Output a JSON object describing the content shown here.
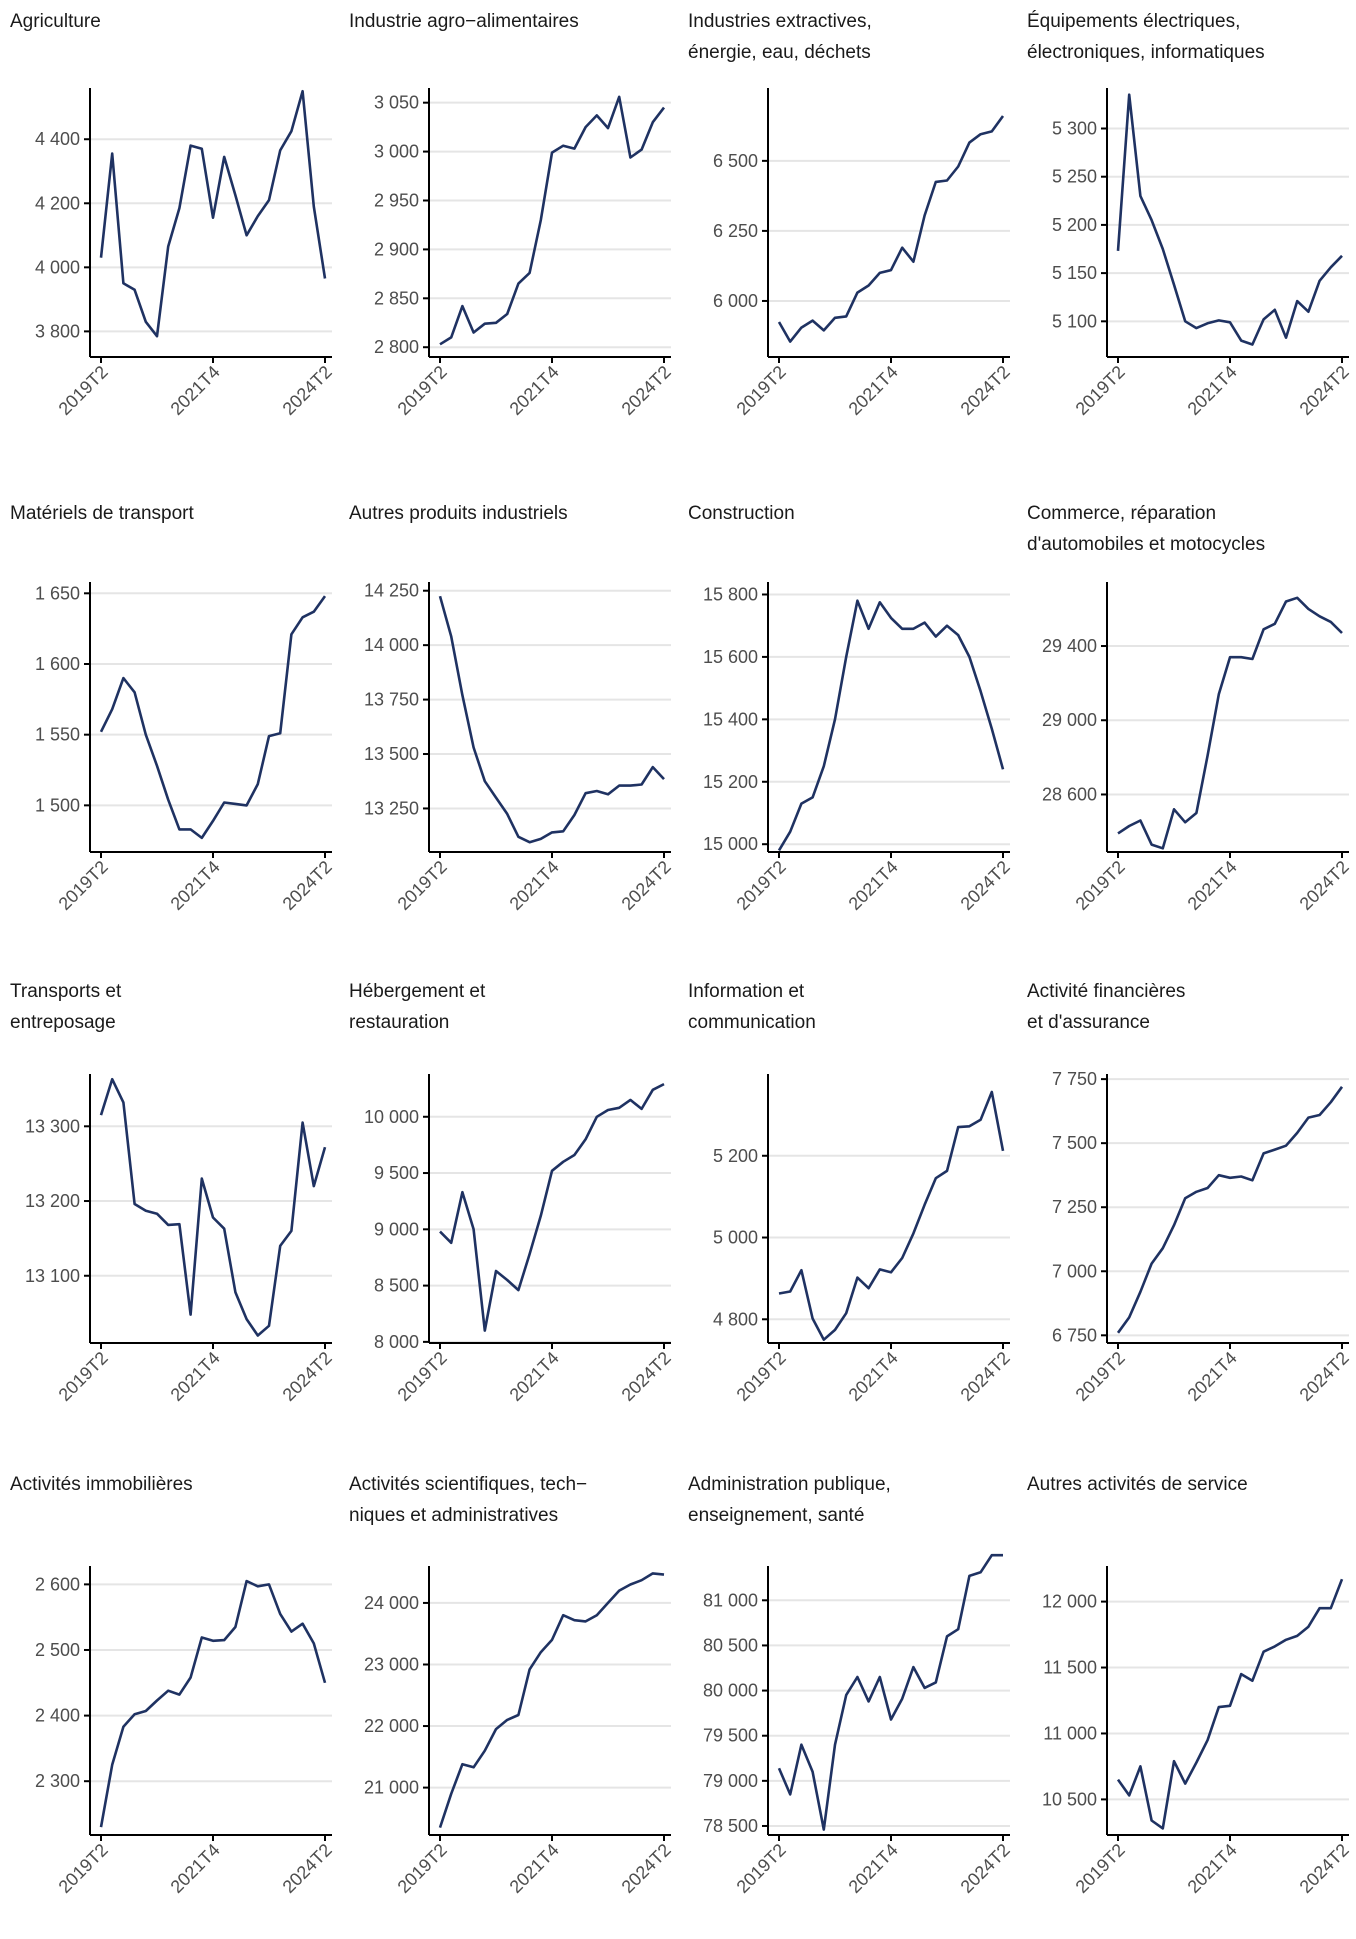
{
  "colors": {
    "line": "#1f3262",
    "grid": "#e5e5e5",
    "axis": "#000000",
    "text": "#1a1a1a",
    "tick_text": "#4d4d4d"
  },
  "chart_data": [
    {
      "type": "line",
      "title": "Agriculture",
      "x_ticks": [
        "2019T2",
        "2021T4",
        "2024T2"
      ],
      "x_tick_index": [
        0,
        10,
        20
      ],
      "y_ticks": [
        3800,
        4000,
        4200,
        4400
      ],
      "y_tick_labels": [
        "3 800",
        "4 000",
        "4 200",
        "4 400"
      ],
      "ylim": [
        3720,
        4560
      ],
      "grid": "horizontal",
      "series": [
        {
          "values": [
            4030,
            4355,
            3950,
            3930,
            3830,
            3785,
            4065,
            4185,
            4380,
            4370,
            4155,
            4345,
            4225,
            4100,
            4160,
            4210,
            4365,
            4425,
            4550,
            4190,
            3965
          ]
        }
      ]
    },
    {
      "type": "line",
      "title": "Industrie agro−alimentaires",
      "x_ticks": [
        "2019T2",
        "2021T4",
        "2024T2"
      ],
      "x_tick_index": [
        0,
        10,
        20
      ],
      "y_ticks": [
        2800,
        2850,
        2900,
        2950,
        3000,
        3050
      ],
      "y_tick_labels": [
        "2 800",
        "2 850",
        "2 900",
        "2 950",
        "3 000",
        "3 050"
      ],
      "ylim": [
        2790,
        3065
      ],
      "grid": "horizontal",
      "series": [
        {
          "values": [
            2803,
            2810,
            2842,
            2815,
            2824,
            2825,
            2834,
            2865,
            2876,
            2930,
            2999,
            3006,
            3003,
            3025,
            3037,
            3024,
            3056,
            2994,
            3002,
            3030,
            3045
          ]
        }
      ]
    },
    {
      "type": "line",
      "title": "Industries extractives,\nénergie, eau, déchets",
      "x_ticks": [
        "2019T2",
        "2021T4",
        "2024T2"
      ],
      "x_tick_index": [
        0,
        10,
        20
      ],
      "y_ticks": [
        6000,
        6250,
        6500
      ],
      "y_tick_labels": [
        "6 000",
        "6 250",
        "6 500"
      ],
      "ylim": [
        5800,
        6760
      ],
      "grid": "horizontal",
      "series": [
        {
          "values": [
            5925,
            5855,
            5905,
            5930,
            5895,
            5940,
            5945,
            6030,
            6055,
            6100,
            6110,
            6190,
            6140,
            6305,
            6425,
            6430,
            6480,
            6565,
            6595,
            6605,
            6660
          ]
        }
      ]
    },
    {
      "type": "line",
      "title": "Équipements électriques,\nélectroniques, informatiques",
      "x_ticks": [
        "2019T2",
        "2021T4",
        "2024T2"
      ],
      "x_tick_index": [
        0,
        10,
        20
      ],
      "y_ticks": [
        5100,
        5150,
        5200,
        5250,
        5300
      ],
      "y_tick_labels": [
        "5 100",
        "5 150",
        "5 200",
        "5 250",
        "5 300"
      ],
      "ylim": [
        5063,
        5342
      ],
      "grid": "horizontal",
      "series": [
        {
          "values": [
            5173,
            5335,
            5230,
            5205,
            5175,
            5138,
            5100,
            5093,
            5098,
            5101,
            5099,
            5080,
            5076,
            5102,
            5112,
            5083,
            5121,
            5110,
            5142,
            5156,
            5168
          ]
        }
      ]
    },
    {
      "type": "line",
      "title": "Matériels de transport",
      "x_ticks": [
        "2019T2",
        "2021T4",
        "2024T2"
      ],
      "x_tick_index": [
        0,
        10,
        20
      ],
      "y_ticks": [
        1500,
        1550,
        1600,
        1650
      ],
      "y_tick_labels": [
        "1 500",
        "1 550",
        "1 600",
        "1 650"
      ],
      "ylim": [
        1467,
        1658
      ],
      "grid": "horizontal",
      "series": [
        {
          "values": [
            1552,
            1568,
            1590,
            1580,
            1550,
            1528,
            1504,
            1483,
            1483,
            1477,
            1489,
            1502,
            1501,
            1500,
            1515,
            1549,
            1551,
            1621,
            1633,
            1637,
            1648
          ]
        }
      ]
    },
    {
      "type": "line",
      "title": "Autres produits industriels",
      "x_ticks": [
        "2019T2",
        "2021T4",
        "2024T2"
      ],
      "x_tick_index": [
        0,
        10,
        20
      ],
      "y_ticks": [
        13250,
        13500,
        13750,
        14000,
        14250
      ],
      "y_tick_labels": [
        "13 250",
        "13 500",
        "13 750",
        "14 000",
        "14 250"
      ],
      "ylim": [
        13050,
        14290
      ],
      "grid": "horizontal",
      "series": [
        {
          "values": [
            14225,
            14040,
            13770,
            13530,
            13375,
            13300,
            13225,
            13120,
            13095,
            13110,
            13140,
            13145,
            13220,
            13320,
            13330,
            13315,
            13355,
            13355,
            13360,
            13440,
            13385
          ]
        }
      ]
    },
    {
      "type": "line",
      "title": "Construction",
      "x_ticks": [
        "2019T2",
        "2021T4",
        "2024T2"
      ],
      "x_tick_index": [
        0,
        10,
        20
      ],
      "y_ticks": [
        15000,
        15200,
        15400,
        15600,
        15800
      ],
      "y_tick_labels": [
        "15 000",
        "15 200",
        "15 400",
        "15 600",
        "15 800"
      ],
      "ylim": [
        14975,
        15840
      ],
      "grid": "horizontal",
      "series": [
        {
          "values": [
            14980,
            15040,
            15130,
            15150,
            15250,
            15400,
            15600,
            15780,
            15690,
            15775,
            15725,
            15690,
            15690,
            15710,
            15665,
            15700,
            15670,
            15600,
            15490,
            15370,
            15240
          ]
        }
      ]
    },
    {
      "type": "line",
      "title": "Commerce, réparation\nd'automobiles et motocycles",
      "x_ticks": [
        "2019T2",
        "2021T4",
        "2024T2"
      ],
      "x_tick_index": [
        0,
        10,
        20
      ],
      "y_ticks": [
        28600,
        29000,
        29400
      ],
      "y_tick_labels": [
        "28 600",
        "29 000",
        "29 400"
      ],
      "ylim": [
        28290,
        29745
      ],
      "grid": "horizontal",
      "series": [
        {
          "values": [
            28390,
            28430,
            28460,
            28330,
            28310,
            28520,
            28450,
            28500,
            28810,
            29140,
            29340,
            29340,
            29330,
            29490,
            29520,
            29640,
            29660,
            29600,
            29560,
            29530,
            29470
          ]
        }
      ]
    },
    {
      "type": "line",
      "title": "Transports et\nentreposage",
      "x_ticks": [
        "2019T2",
        "2021T4",
        "2024T2"
      ],
      "x_tick_index": [
        0,
        10,
        20
      ],
      "y_ticks": [
        13100,
        13200,
        13300
      ],
      "y_tick_labels": [
        "13 100",
        "13 200",
        "13 300"
      ],
      "ylim": [
        13010,
        13370
      ],
      "grid": "horizontal",
      "series": [
        {
          "values": [
            13315,
            13363,
            13332,
            13196,
            13187,
            13183,
            13168,
            13169,
            13048,
            13230,
            13178,
            13163,
            13078,
            13042,
            13020,
            13033,
            13140,
            13160,
            13305,
            13220,
            13272
          ]
        }
      ]
    },
    {
      "type": "line",
      "title": "Hébergement et\nrestauration",
      "x_ticks": [
        "2019T2",
        "2021T4",
        "2024T2"
      ],
      "x_tick_index": [
        0,
        10,
        20
      ],
      "y_ticks": [
        8000,
        8500,
        9000,
        9500,
        10000
      ],
      "y_tick_labels": [
        "8 000",
        "8 500",
        "9 000",
        "9 500",
        "10 000"
      ],
      "ylim": [
        7990,
        10380
      ],
      "grid": "horizontal",
      "series": [
        {
          "values": [
            8980,
            8880,
            9330,
            9000,
            8100,
            8630,
            8550,
            8460,
            8780,
            9120,
            9520,
            9600,
            9660,
            9800,
            10000,
            10060,
            10080,
            10150,
            10070,
            10240,
            10290
          ]
        }
      ]
    },
    {
      "type": "line",
      "title": "Information et\ncommunication",
      "x_ticks": [
        "2019T2",
        "2021T4",
        "2024T2"
      ],
      "x_tick_index": [
        0,
        10,
        20
      ],
      "y_ticks": [
        4800,
        5000,
        5200
      ],
      "y_tick_labels": [
        "4 800",
        "5 000",
        "5 200"
      ],
      "ylim": [
        4742,
        5400
      ],
      "grid": "horizontal",
      "series": [
        {
          "values": [
            4863,
            4868,
            4920,
            4802,
            4750,
            4774,
            4815,
            4902,
            4876,
            4922,
            4915,
            4950,
            5010,
            5080,
            5145,
            5163,
            5270,
            5272,
            5288,
            5356,
            5212
          ]
        }
      ]
    },
    {
      "type": "line",
      "title": "Activité financières\net d'assurance",
      "x_ticks": [
        "2019T2",
        "2021T4",
        "2024T2"
      ],
      "x_tick_index": [
        0,
        10,
        20
      ],
      "y_ticks": [
        6750,
        7000,
        7250,
        7500,
        7750
      ],
      "y_tick_labels": [
        "6 750",
        "7 000",
        "7 250",
        "7 500",
        "7 750"
      ],
      "ylim": [
        6720,
        7770
      ],
      "grid": "horizontal",
      "series": [
        {
          "values": [
            6760,
            6820,
            6920,
            7030,
            7090,
            7180,
            7285,
            7310,
            7325,
            7375,
            7365,
            7370,
            7355,
            7460,
            7475,
            7490,
            7540,
            7600,
            7610,
            7660,
            7720
          ]
        }
      ]
    },
    {
      "type": "line",
      "title": "Activités immobilières",
      "x_ticks": [
        "2019T2",
        "2021T4",
        "2024T2"
      ],
      "x_tick_index": [
        0,
        10,
        20
      ],
      "y_ticks": [
        2300,
        2400,
        2500,
        2600
      ],
      "y_tick_labels": [
        "2 300",
        "2 400",
        "2 500",
        "2 600"
      ],
      "ylim": [
        2218,
        2628
      ],
      "grid": "horizontal",
      "series": [
        {
          "values": [
            2230,
            2325,
            2383,
            2402,
            2407,
            2423,
            2438,
            2432,
            2458,
            2519,
            2514,
            2515,
            2535,
            2605,
            2597,
            2600,
            2555,
            2528,
            2540,
            2510,
            2450
          ]
        }
      ]
    },
    {
      "type": "line",
      "title": "Activités scientifiques, tech−\nniques et administratives",
      "x_ticks": [
        "2019T2",
        "2021T4",
        "2024T2"
      ],
      "x_tick_index": [
        0,
        10,
        20
      ],
      "y_ticks": [
        21000,
        22000,
        23000,
        24000
      ],
      "y_tick_labels": [
        "21 000",
        "22 000",
        "23 000",
        "24 000"
      ],
      "ylim": [
        20230,
        24600
      ],
      "grid": "horizontal",
      "series": [
        {
          "values": [
            20350,
            20900,
            21380,
            21330,
            21600,
            21950,
            22100,
            22180,
            22920,
            23200,
            23400,
            23800,
            23720,
            23700,
            23800,
            24000,
            24200,
            24300,
            24370,
            24480,
            24460
          ]
        }
      ]
    },
    {
      "type": "line",
      "title": "Administration publique,\nenseignement, santé",
      "x_ticks": [
        "2019T2",
        "2021T4",
        "2024T2"
      ],
      "x_tick_index": [
        0,
        10,
        20
      ],
      "y_ticks": [
        78500,
        79000,
        79500,
        80000,
        80500,
        81000
      ],
      "y_tick_labels": [
        "78 500",
        "79 000",
        "79 500",
        "80 000",
        "80 500",
        "81 000"
      ],
      "ylim": [
        78400,
        81380
      ],
      "grid": "horizontal",
      "series": [
        {
          "values": [
            79140,
            78850,
            79400,
            79100,
            78460,
            79400,
            79950,
            80150,
            79880,
            80150,
            79680,
            79910,
            80260,
            80030,
            80090,
            80600,
            80680,
            81270,
            81310,
            81500,
            81500
          ]
        }
      ]
    },
    {
      "type": "line",
      "title": "Autres activités de service",
      "x_ticks": [
        "2019T2",
        "2021T4",
        "2024T2"
      ],
      "x_tick_index": [
        0,
        10,
        20
      ],
      "y_ticks": [
        10500,
        11000,
        11500,
        12000
      ],
      "y_tick_labels": [
        "10 500",
        "11 000",
        "11 500",
        "12 000"
      ],
      "ylim": [
        10230,
        12270
      ],
      "grid": "horizontal",
      "series": [
        {
          "values": [
            10650,
            10530,
            10750,
            10340,
            10280,
            10790,
            10620,
            10780,
            10950,
            11200,
            11210,
            11450,
            11400,
            11620,
            11660,
            11710,
            11740,
            11810,
            11950,
            11950,
            12170
          ]
        }
      ]
    }
  ]
}
